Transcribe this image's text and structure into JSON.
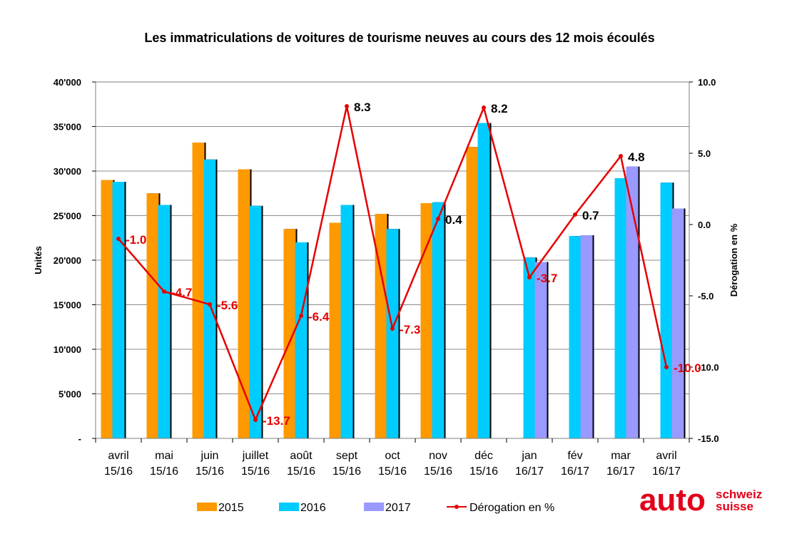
{
  "chart_data": {
    "type": "bar",
    "title": "Les immatriculations de voitures de tourisme neuves au cours des 12 mois écoulés",
    "ylabel": "Unités",
    "y2label": "Dérogation en %",
    "ylim": [
      0,
      40000
    ],
    "y2lim": [
      -15,
      10
    ],
    "y_ticks": [
      "-",
      "5'000",
      "10'000",
      "15'000",
      "20'000",
      "25'000",
      "30'000",
      "35'000",
      "40'000"
    ],
    "y2_ticks": [
      "-15.0",
      "-10.0",
      "-5.0",
      "0.0",
      "5.0",
      "10.0"
    ],
    "categories": [
      [
        "avril",
        "15/16"
      ],
      [
        "mai",
        "15/16"
      ],
      [
        "juin",
        "15/16"
      ],
      [
        "juillet",
        "15/16"
      ],
      [
        "août",
        "15/16"
      ],
      [
        "sept",
        "15/16"
      ],
      [
        "oct",
        "15/16"
      ],
      [
        "nov",
        "15/16"
      ],
      [
        "déc",
        "15/16"
      ],
      [
        "jan",
        "16/17"
      ],
      [
        "fév",
        "16/17"
      ],
      [
        "mar",
        "16/17"
      ],
      [
        "avril",
        "16/17"
      ]
    ],
    "series": [
      {
        "name": "2015",
        "color": "#ff9900",
        "values": [
          29000,
          27500,
          33200,
          30200,
          23500,
          24200,
          25200,
          26400,
          32700,
          null,
          null,
          null,
          null
        ]
      },
      {
        "name": "2016",
        "color": "#00ccff",
        "values": [
          28800,
          26200,
          31300,
          26100,
          22000,
          26200,
          23500,
          26500,
          35400,
          20300,
          22700,
          29200,
          28700
        ]
      },
      {
        "name": "2017",
        "color": "#9999ff",
        "values": [
          null,
          null,
          null,
          null,
          null,
          null,
          null,
          null,
          null,
          19800,
          22800,
          30500,
          25800
        ]
      }
    ],
    "line_series": {
      "name": "Dérogation en %",
      "color": "#e60000",
      "values": [
        -1.0,
        -4.7,
        -5.6,
        -13.7,
        -6.4,
        8.3,
        -7.3,
        0.4,
        8.2,
        -3.7,
        0.7,
        4.8,
        -10.0
      ],
      "labels": [
        "-1.0",
        "-4.7",
        "-5.6",
        "-13.7",
        "-6.4",
        "8.3",
        "-7.3",
        "0.4",
        "8.2",
        "-3.7",
        "0.7",
        "4.8",
        "-10.0"
      ]
    },
    "grid": true,
    "legend_placement": "bottom"
  },
  "logo": {
    "main": "auto",
    "line1": "schweiz",
    "line2": "suisse",
    "color": "#e2001a"
  }
}
